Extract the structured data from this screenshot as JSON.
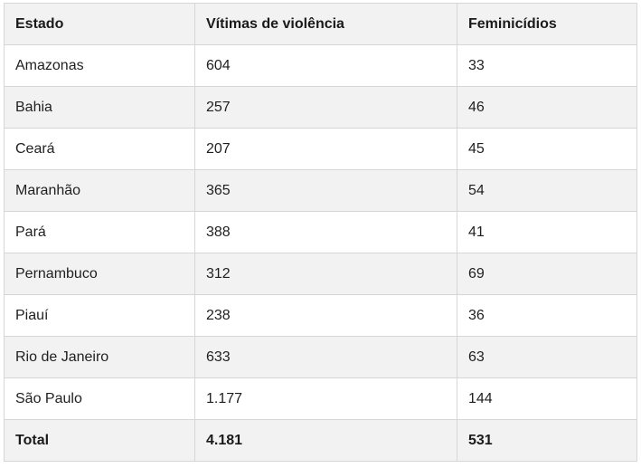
{
  "table": {
    "headers": [
      "Estado",
      "Vítimas de violência",
      "Feminicídios"
    ],
    "rows": [
      [
        "Amazonas",
        "604",
        "33"
      ],
      [
        "Bahia",
        "257",
        "46"
      ],
      [
        "Ceará",
        "207",
        "45"
      ],
      [
        "Maranhão",
        "365",
        "54"
      ],
      [
        "Pará",
        "388",
        "41"
      ],
      [
        "Pernambuco",
        "312",
        "69"
      ],
      [
        "Piauí",
        "238",
        "36"
      ],
      [
        "Rio de Janeiro",
        "633",
        "63"
      ],
      [
        "São Paulo",
        "1.177",
        "144"
      ]
    ],
    "total": [
      "Total",
      "4.181",
      "531"
    ]
  }
}
